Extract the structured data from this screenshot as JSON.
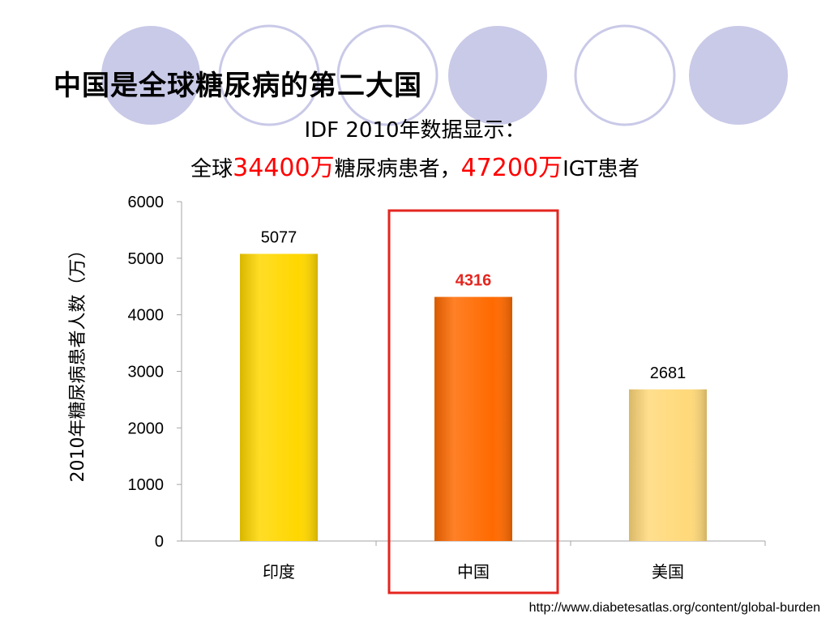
{
  "slide": {
    "title": "中国是全球糖尿病的第二大国",
    "subtitle_line1": "IDF 2010年数据显示：",
    "subtitle_line2": {
      "prefix": "全球",
      "value1": "34400万",
      "middle": "糖尿病患者，",
      "value2": "47200万",
      "suffix": "IGT患者"
    },
    "source": "http://www.diabetesatlas.org/content/global-burden"
  },
  "colors": {
    "circle_fill": "#c9c9e8",
    "circle_stroke": "#c9c9e8",
    "highlight_red": "#ff0000",
    "box_red": "#e3261f",
    "axis": "#a6a6a6"
  },
  "chart_data": {
    "type": "bar",
    "categories": [
      "印度",
      "中国",
      "美国"
    ],
    "values": [
      5077,
      4316,
      2681
    ],
    "value_labels": [
      "5077",
      "4316",
      "2681"
    ],
    "bar_colors": [
      "#ffd700",
      "#ff6a00",
      "#ffd97a"
    ],
    "label_colors": [
      "#000000",
      "#e3261f",
      "#000000"
    ],
    "highlight_index": 1,
    "ylabel": "2010年糖尿病患者人数（万）",
    "xlabel": "",
    "ylim": [
      0,
      6000
    ],
    "yticks": [
      0,
      1000,
      2000,
      3000,
      4000,
      5000,
      6000
    ],
    "grid": false,
    "legend": "none"
  }
}
